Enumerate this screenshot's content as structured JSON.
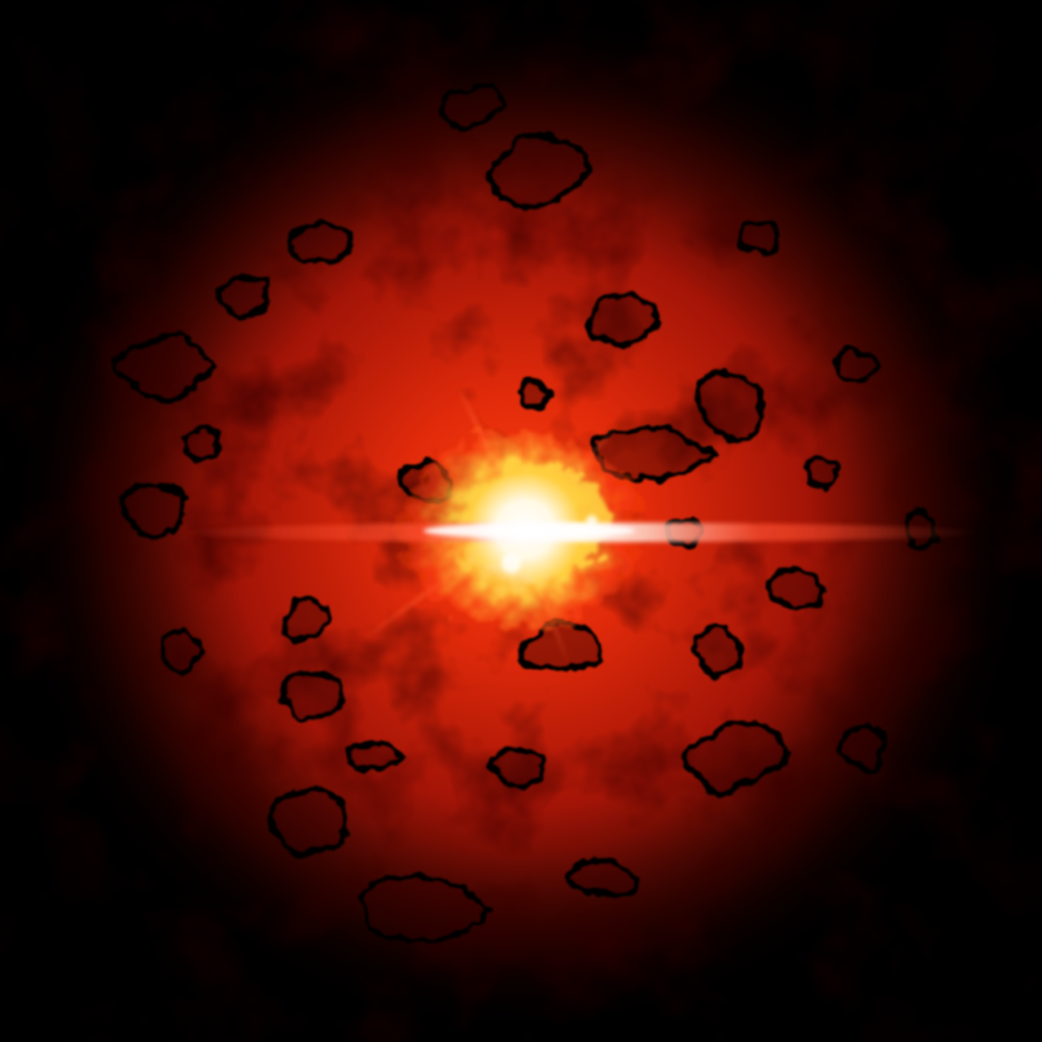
{
  "image": {
    "subject": "red-cosmic-explosion",
    "colors": {
      "background": "#000000",
      "outer_glow": "#5a0500",
      "mid_glow": "#c01808",
      "inner_glow": "#ff4010",
      "hot_core": "#ffd040",
      "white_core": "#ffffff",
      "flare": "#ff5030",
      "void_edge": "#000000"
    }
  }
}
